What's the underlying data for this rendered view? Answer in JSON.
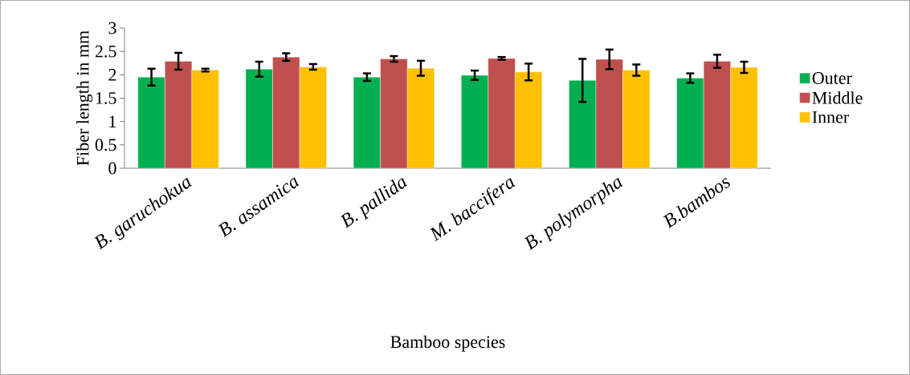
{
  "chart_data": {
    "type": "bar",
    "xlabel": "Bamboo species",
    "ylabel": "Fiber length in mm",
    "categories": [
      "B. garuchokua",
      "B. assamica",
      "B. pallida",
      "M. baccifera",
      "B. polymorpha",
      "B.bambos"
    ],
    "series": [
      {
        "name": "Outer",
        "color": "#00b050",
        "values": [
          1.95,
          2.12,
          1.95,
          1.99,
          1.88,
          1.93
        ],
        "errors": [
          0.18,
          0.16,
          0.08,
          0.1,
          0.46,
          0.1
        ]
      },
      {
        "name": "Middle",
        "color": "#c0504d",
        "values": [
          2.29,
          2.38,
          2.34,
          2.35,
          2.33,
          2.29
        ],
        "errors": [
          0.18,
          0.08,
          0.06,
          0.03,
          0.21,
          0.14
        ]
      },
      {
        "name": "Inner",
        "color": "#ffc000",
        "values": [
          2.1,
          2.17,
          2.14,
          2.06,
          2.1,
          2.16
        ],
        "errors": [
          0.03,
          0.06,
          0.16,
          0.18,
          0.12,
          0.12
        ]
      }
    ],
    "ylim": [
      0,
      3
    ],
    "yticks": [
      0,
      0.5,
      1,
      1.5,
      2,
      2.5,
      3
    ],
    "legend": "right",
    "grid": false
  }
}
